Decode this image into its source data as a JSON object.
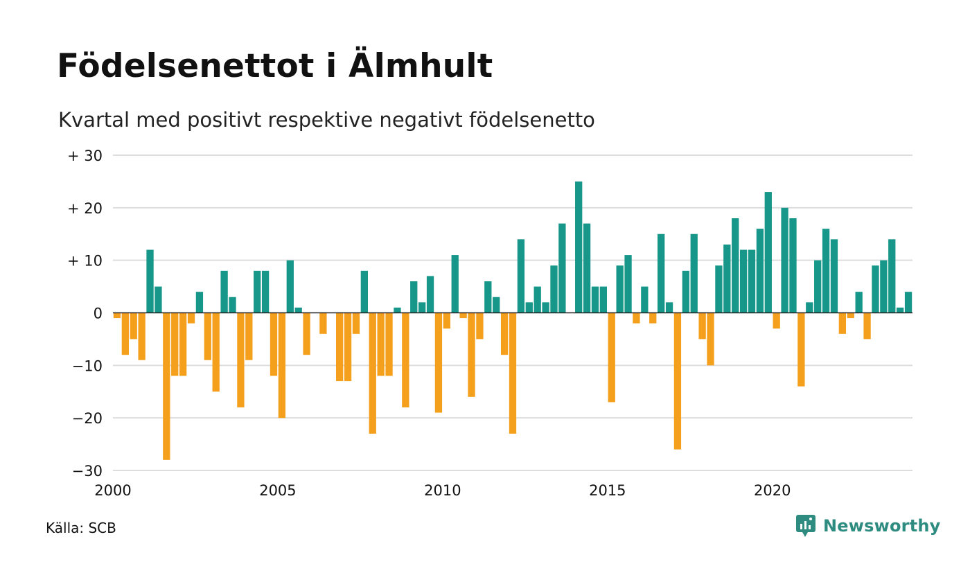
{
  "colors": {
    "positive": "#17978a",
    "negative": "#f5a01c",
    "grid": "#dddddd",
    "brand": "#2e8b80"
  },
  "chart_data": {
    "type": "bar",
    "title": "Födelsenettot i Älmhult",
    "subtitle": "Kvartal med positivt respektive negativt födelsenetto",
    "x_start": 2000,
    "x_step": 0.25,
    "values": [
      -1,
      -8,
      -5,
      -9,
      12,
      5,
      -28,
      -12,
      -12,
      -2,
      4,
      -9,
      -15,
      8,
      3,
      -18,
      -9,
      8,
      8,
      -12,
      -20,
      10,
      1,
      -8,
      0,
      -4,
      0,
      -13,
      -13,
      -4,
      8,
      -23,
      -12,
      -12,
      1,
      -18,
      6,
      2,
      7,
      -19,
      -3,
      11,
      -1,
      -16,
      -5,
      6,
      3,
      -8,
      -23,
      14,
      2,
      5,
      2,
      9,
      17,
      0,
      25,
      17,
      5,
      5,
      -17,
      9,
      11,
      -2,
      5,
      -2,
      15,
      2,
      -26,
      8,
      15,
      -5,
      -10,
      9,
      13,
      18,
      12,
      12,
      16,
      23,
      -3,
      20,
      18,
      -14,
      2,
      10,
      16,
      14,
      -4,
      -1,
      4,
      -5,
      9,
      10,
      14,
      1,
      4
    ],
    "ylim": [
      -30,
      30
    ],
    "y_ticks": [
      {
        "value": 30,
        "label": "+ 30"
      },
      {
        "value": 20,
        "label": "+ 20"
      },
      {
        "value": 10,
        "label": "+ 10"
      },
      {
        "value": 0,
        "label": "0"
      },
      {
        "value": -10,
        "label": "−10"
      },
      {
        "value": -20,
        "label": "−20"
      },
      {
        "value": -30,
        "label": "−30"
      }
    ],
    "x_ticks": [
      {
        "value": 2000,
        "label": "2000"
      },
      {
        "value": 2005,
        "label": "2005"
      },
      {
        "value": 2010,
        "label": "2010"
      },
      {
        "value": 2015,
        "label": "2015"
      },
      {
        "value": 2020,
        "label": "2020"
      }
    ],
    "grid": true
  },
  "footer": {
    "source": "Källa: SCB",
    "brand": "Newsworthy",
    "brand_icon": "newsworthy-logo-icon"
  }
}
